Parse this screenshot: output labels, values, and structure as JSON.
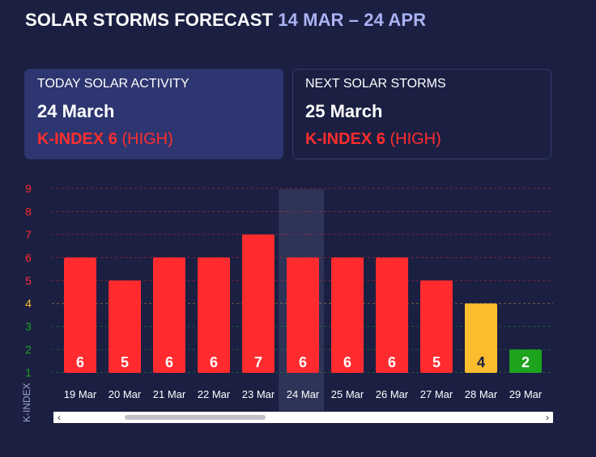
{
  "header": {
    "title": "SOLAR STORMS FORECAST",
    "range": "14 MAR – 24 APR"
  },
  "cards": {
    "today": {
      "label": "TODAY SOLAR ACTIVITY",
      "date": "24 March",
      "kindex": "K-INDEX 6",
      "level": "(HIGH)"
    },
    "next": {
      "label": "NEXT SOLAR STORMS",
      "date": "25 March",
      "kindex": "K-INDEX 6",
      "level": "(HIGH)"
    }
  },
  "colors": {
    "background": "#1b1f42",
    "high": "#ff2b2e",
    "medium": "#fbbd2d",
    "low": "#1ea31e",
    "highlight_band": "#2e3358"
  },
  "scroll": {
    "left_icon": "chevron-left-icon",
    "right_icon": "chevron-right-icon"
  },
  "chart_data": {
    "type": "bar",
    "categories": [
      "19 Mar",
      "20 Mar",
      "21 Mar",
      "22 Mar",
      "23 Mar",
      "24 Mar",
      "25 Mar",
      "26 Mar",
      "27 Mar",
      "28 Mar",
      "29 Mar"
    ],
    "values": [
      6,
      5,
      6,
      6,
      7,
      6,
      6,
      6,
      5,
      4,
      2
    ],
    "ylabel": "K-INDEX",
    "yticks": [
      1,
      2,
      3,
      4,
      5,
      6,
      7,
      8,
      9
    ],
    "ylim": [
      0,
      9
    ],
    "highlighted_category": "24 Mar",
    "grid": true
  }
}
